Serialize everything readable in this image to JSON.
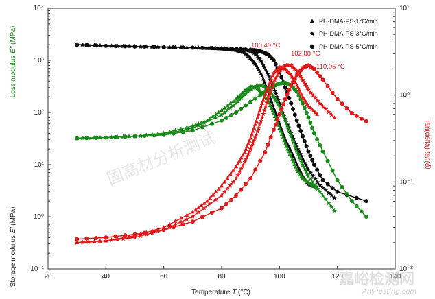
{
  "chart_data": {
    "type": "scatter",
    "x_axis": {
      "label": "Temperature",
      "symbol": "T",
      "unit": " (°C)",
      "range": [
        20,
        140
      ],
      "ticks": [
        20,
        40,
        60,
        80,
        100,
        120,
        140
      ]
    },
    "y_left": {
      "label_storage": "Storage modulus",
      "symbol_storage": "E'",
      "unit": " (MPa)",
      "label_loss": "Loss modulus",
      "symbol_loss": "E\"",
      "scale": "log",
      "range": [
        0.1,
        10000
      ],
      "ticks": [
        "10⁻¹",
        "10⁰",
        "10¹",
        "10²",
        "10³",
        "10⁴"
      ]
    },
    "y_right": {
      "label": "Tan(delta)",
      "symbol": "tan(δ)",
      "scale": "log",
      "range": [
        0.01,
        10
      ],
      "ticks": [
        "10⁻²",
        "10⁻¹",
        "10⁰",
        "10¹"
      ]
    },
    "legend": {
      "position": "top-right",
      "entries": [
        {
          "name": "PH-DMA-PS-1°C/min",
          "marker": "triangle"
        },
        {
          "name": "PH-DMA-PS-3°C/min",
          "marker": "star"
        },
        {
          "name": "PH-DMA-PS-5°C/min",
          "marker": "circle"
        }
      ]
    },
    "annotations": [
      {
        "text": "100.40 °C",
        "x": 100.4
      },
      {
        "text": "102.88 °C",
        "x": 102.88
      },
      {
        "text": "110.05 °C",
        "x": 110.05
      }
    ],
    "colors": {
      "storage": "#0a0a0a",
      "loss": "#1a8a1a",
      "tan": "#e01b1b"
    },
    "series": [
      {
        "group": "storage",
        "marker": "triangle",
        "x": [
          30,
          40,
          50,
          60,
          70,
          75,
          80,
          85,
          88,
          90,
          92,
          94,
          96,
          98,
          100,
          102,
          104,
          106,
          108,
          110,
          113
        ],
        "y": [
          2000,
          1900,
          1850,
          1800,
          1750,
          1700,
          1650,
          1550,
          1400,
          1100,
          800,
          500,
          250,
          120,
          60,
          30,
          18,
          10,
          6,
          4.2,
          3.6
        ]
      },
      {
        "group": "storage",
        "marker": "star",
        "x": [
          30,
          40,
          50,
          60,
          70,
          80,
          85,
          88,
          90,
          92,
          94,
          96,
          98,
          100,
          102,
          104,
          106,
          108,
          110,
          114,
          119
        ],
        "y": [
          2000,
          1900,
          1850,
          1800,
          1750,
          1700,
          1650,
          1600,
          1500,
          1300,
          900,
          550,
          300,
          150,
          75,
          40,
          22,
          13,
          8,
          4,
          2.3
        ]
      },
      {
        "group": "storage",
        "marker": "circle",
        "x": [
          30,
          40,
          50,
          60,
          70,
          80,
          85,
          90,
          92,
          94,
          96,
          98,
          100,
          102,
          104,
          106,
          108,
          110,
          112,
          115,
          120,
          130
        ],
        "y": [
          2000,
          1900,
          1850,
          1800,
          1750,
          1700,
          1650,
          1600,
          1550,
          1450,
          1300,
          1000,
          600,
          300,
          150,
          70,
          35,
          18,
          10,
          5,
          3,
          2
        ]
      },
      {
        "group": "loss",
        "marker": "triangle",
        "x": [
          30,
          40,
          50,
          60,
          70,
          75,
          80,
          85,
          88,
          90,
          92,
          94,
          96,
          98,
          100,
          102,
          104,
          106,
          108,
          110,
          113
        ],
        "y": [
          32,
          33,
          35,
          40,
          55,
          70,
          110,
          180,
          260,
          310,
          300,
          240,
          170,
          95,
          50,
          25,
          14,
          8,
          5.5,
          4.5,
          3.5
        ]
      },
      {
        "group": "loss",
        "marker": "star",
        "x": [
          30,
          40,
          50,
          60,
          70,
          80,
          85,
          88,
          90,
          92,
          94,
          96,
          98,
          100,
          102,
          104,
          106,
          108,
          110,
          114,
          119
        ],
        "y": [
          32,
          33,
          35,
          38,
          50,
          90,
          150,
          220,
          280,
          320,
          330,
          280,
          200,
          130,
          70,
          35,
          18,
          10,
          6,
          3,
          1.3
        ]
      },
      {
        "group": "loss",
        "marker": "circle",
        "x": [
          30,
          40,
          50,
          60,
          70,
          80,
          85,
          90,
          95,
          98,
          100,
          102,
          104,
          106,
          108,
          110,
          112,
          115,
          120,
          125,
          130
        ],
        "y": [
          32,
          33,
          35,
          37,
          45,
          70,
          100,
          160,
          250,
          320,
          360,
          370,
          330,
          250,
          150,
          80,
          40,
          18,
          5,
          2,
          1
        ]
      },
      {
        "group": "tan",
        "marker": "triangle",
        "x": [
          30,
          40,
          50,
          60,
          70,
          75,
          80,
          85,
          88,
          90,
          92,
          94,
          96,
          98,
          100,
          102,
          104,
          106,
          108,
          110,
          113
        ],
        "y": [
          0.02,
          0.021,
          0.024,
          0.03,
          0.045,
          0.06,
          0.09,
          0.15,
          0.22,
          0.32,
          0.5,
          0.8,
          1.2,
          1.8,
          2.1,
          2.0,
          1.7,
          1.3,
          0.95,
          0.75,
          0.6
        ]
      },
      {
        "group": "tan",
        "marker": "star",
        "x": [
          30,
          40,
          50,
          60,
          70,
          80,
          85,
          88,
          90,
          92,
          94,
          96,
          98,
          100,
          102,
          104,
          106,
          108,
          110,
          114,
          119
        ],
        "y": [
          0.02,
          0.021,
          0.023,
          0.028,
          0.04,
          0.07,
          0.11,
          0.17,
          0.24,
          0.35,
          0.55,
          0.9,
          1.4,
          1.9,
          2.2,
          2.2,
          1.9,
          1.5,
          1.15,
          0.8,
          0.55
        ]
      },
      {
        "group": "tan",
        "marker": "circle",
        "x": [
          30,
          40,
          50,
          60,
          70,
          80,
          85,
          90,
          95,
          98,
          100,
          102,
          104,
          106,
          108,
          110,
          112,
          115,
          120,
          125,
          130
        ],
        "y": [
          0.022,
          0.023,
          0.025,
          0.028,
          0.035,
          0.05,
          0.07,
          0.11,
          0.22,
          0.4,
          0.6,
          0.9,
          1.3,
          1.7,
          2.05,
          2.2,
          2.0,
          1.5,
          0.9,
          0.62,
          0.5
        ]
      }
    ]
  },
  "watermark": {
    "cn": "国高材分析测试",
    "brand_cn": "嘉峪检测网",
    "brand_en": "AnyTesting.com"
  }
}
